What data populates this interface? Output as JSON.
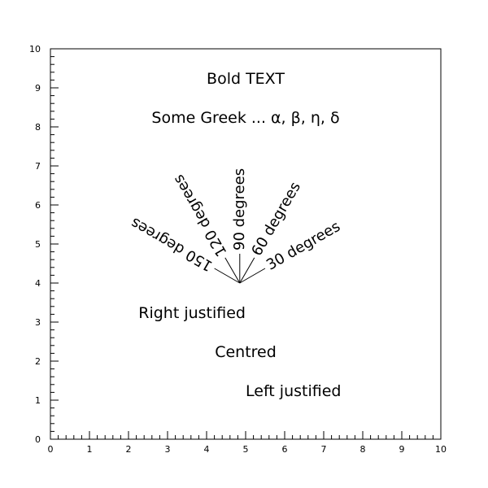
{
  "chart_data": {
    "type": "text",
    "xlim": [
      0,
      10
    ],
    "ylim": [
      0,
      10
    ],
    "x_ticks": [
      "0",
      "1",
      "2",
      "3",
      "4",
      "5",
      "6",
      "7",
      "8",
      "9",
      "10"
    ],
    "y_ticks": [
      "0",
      "1",
      "2",
      "3",
      "4",
      "5",
      "6",
      "7",
      "8",
      "9",
      "10"
    ],
    "grid": false,
    "annotations": [
      {
        "text": "Bold TEXT",
        "x": 5.0,
        "y": 9.1,
        "align": "center"
      },
      {
        "text": "Some Greek ... α, β, η, δ",
        "x": 5.0,
        "y": 8.1,
        "align": "center"
      },
      {
        "text": "Right justified",
        "x": 5.0,
        "y": 3.1,
        "align": "right"
      },
      {
        "text": "Centred",
        "x": 5.0,
        "y": 2.1,
        "align": "center"
      },
      {
        "text": "Left justified",
        "x": 5.0,
        "y": 1.1,
        "align": "left"
      }
    ],
    "origin": [
      4.85,
      4.0
    ],
    "angle_labels": [
      {
        "text": "30 degrees",
        "angle": 30
      },
      {
        "text": "60 degrees",
        "angle": 60
      },
      {
        "text": "90 degrees",
        "angle": 90
      },
      {
        "text": "120 degrees",
        "angle": 120
      },
      {
        "text": "150 degrees",
        "angle": 150
      }
    ]
  }
}
